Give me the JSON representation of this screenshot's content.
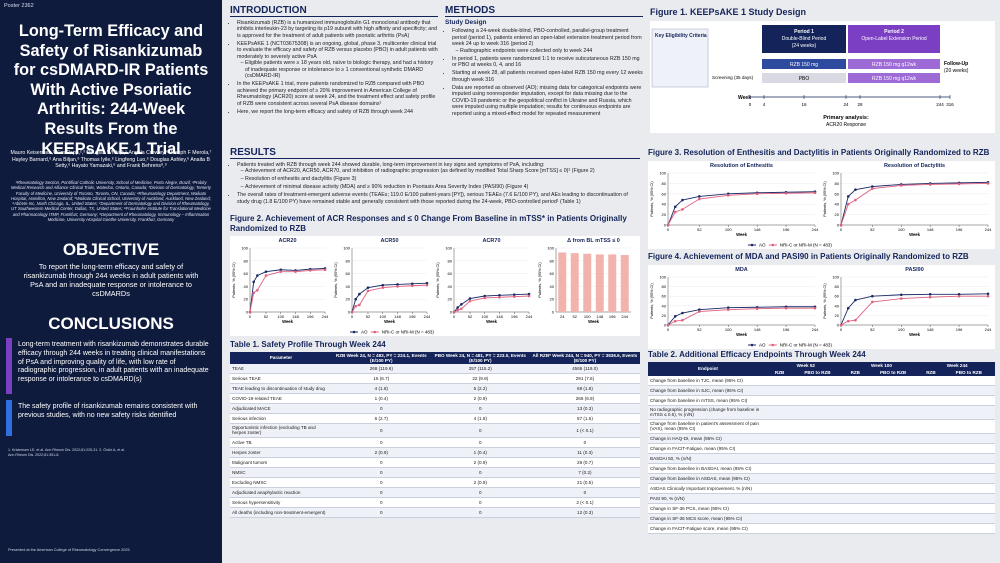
{
  "poster_number": "Poster 2362",
  "title": "Long-Term Efficacy and Safety of Risankizumab for csDMARD-IR Patients With Active Psoriatic Arthritis: 244-Week Results From the KEEPsAKE 1 Trial",
  "authors": "Mauro Keiserman,¹ Kim Papp,²,³ Douglas White,⁴,⁵ Angela Crowley,⁶ Joseph F Merola,⁷ Hayley Barnard,⁶ Ana Biljan,⁶ Thomas Iyile,⁶ Lingfeng Luo,⁶ Douglas Ashley,⁶ Anaita B Setty,⁶ Hayato Yamazaki,⁶ and Frank Behrens⁸,⁹",
  "affiliations": "¹Rheumatology Section, Pontifical Catholic University, School of Medicine, Porto Alegre, Brazil; ²Probity Medical Research and Alliance Clinical Trials, Waterloo, Ontario, Canada; ³Division of Dermatology, Temerty Faculty of Medicine, University of Toronto, Toronto, ON, Canada; ⁴Rheumatology Department, Waikato Hospital, Hamilton, New Zealand; ⁵Waikato Clinical School, University of Auckland, Auckland, New Zealand; ⁶AbbVie Inc, North Chicago, IL, United States; ⁷Department of Dermatology and Division of Rheumatology, UT Southwestern Medical Center, Dallas, TX, United States; ⁸Fraunhofer Institute for Translational Medicine and Pharmacology ITMP, Frankfurt, Germany; ⁹Department of Rheumatology, Immunology – Inflammation Medicine, University Hospital Goethe University, Frankfurt, Germany",
  "objective": {
    "heading": "OBJECTIVE",
    "text": "To report the long-term efficacy and safety of risankizumab through 244 weeks in adult patients with PsA and an inadequate response or intolerance to csDMARDs"
  },
  "conclusions": {
    "heading": "CONCLUSIONS",
    "items": [
      "Long-term treatment with risankizumab demonstrates durable efficacy through 244 weeks in treating clinical manifestations of PsA and improving quality of life, with low rate of radiographic progression, in adult patients with an inadequate response or intolerance to csDMARD(s)",
      "The safety profile of risankizumab remains consistent with previous studies, with no new safety risks identified"
    ]
  },
  "references": "1. Kristensen LE, et al. Ann Rheum Dis. 2022;81:225-31. 2. Östör A, et al. Ann Rheum Dis. 2022;81:351-8.",
  "footer": "Presented at the American College of Rheumatology Convergence 2025",
  "introduction": {
    "heading": "INTRODUCTION",
    "bullets": [
      "Risankizumab (RZB) is a humanized immunoglobulin G1 monoclonal antibody that inhibits interleukin-23 by targeting its p19 subunit with high affinity and specificity; and is approved for the treatment of adult patients with psoriatic arthritis (PsA)",
      {
        "text": "KEEPsAKE 1 (NCT03675308) is an ongoing, global, phase 3, multicenter clinical trial to evaluate the efficacy and safety of RZB versus placebo (PBO) in adult patients with moderately to severely active PsA",
        "sub": [
          "Eligible patients were ≥ 18 years old, naïve to biologic therapy, and had a history of inadequate response or intolerance to ≥ 1 conventional synthetic DMARD (csDMARD-IR)"
        ]
      },
      "In the KEEPsAKE 1 trial, more patients randomized to RZB compared with PBO achieved the primary endpoint of ≥ 20% improvement in American College of Rheumatology (ACR20) score at week 24, and the treatment effect and safety profile of RZB were consistent across several PsA disease domains¹",
      "Here, we report the long-term efficacy and safety of RZB through week 244"
    ]
  },
  "methods": {
    "heading": "METHODS",
    "subheading": "Study Design",
    "bullets": [
      {
        "text": "Following a 24-week double-blind, PBO-controlled, parallel-group treatment period (period 1), patients entered an open-label extension treatment period from week 24 up to week 316 (period 2)",
        "sub": [
          "Radiographic endpoints were collected only to week 244"
        ]
      },
      "In period 1, patients were randomized 1:1 to receive subcutaneous RZB 150 mg or PBO at weeks 0, 4, and 16",
      "Starting at week 28, all patients received open-label RZB 150 mg every 12 weeks through week 316",
      "Data are reported as observed (AO); missing data for categorical endpoints were imputed using nonresponder imputation, except for data missing due to the COVID-19 pandemic or the geopolitical conflict in Ukraine and Russia, which were imputed using multiple imputation; results for continuous endpoints are reported using a mixed-effect model for repeated measurement"
    ]
  },
  "figure1": {
    "title": "Figure 1. KEEPsAKE 1 Study Design",
    "criteria": "Key Eligibility Criteria",
    "screening": "Screening (35 days)",
    "period1": [
      "Period 1",
      "Double-Blind Period",
      "(24 weeks)"
    ],
    "period2": [
      "Period 2",
      "Open-Label Extension Period"
    ],
    "arm_rzb": "RZB 150 mg",
    "arm_pbo": "PBO",
    "arm_ole": "RZB 150 mg q12wk",
    "followup": [
      "Follow-Up",
      "(20 weeks)"
    ],
    "week_label": "Week",
    "weeks": [
      0,
      4,
      16,
      24,
      28,
      244,
      316
    ],
    "primary": [
      "Primary analysis:",
      "ACR20 Response"
    ]
  },
  "results": {
    "heading": "RESULTS",
    "bullets": [
      {
        "text": "Patients treated with RZB through week 244 showed durable, long-term improvement in key signs and symptoms of PsA, including:",
        "sub": [
          "Achievement of ACR20, ACR50, ACR70, and inhibition of radiographic progression (as defined by modified Total Sharp Score [mTSS] ≤ 0)² (Figure 2)",
          "Resolution of enthesitis and dactylitis (Figure 3)",
          "Achievement of minimal disease activity (MDA) and ≥ 90% reduction in Psoriasis Area Severity Index (PASI90) (Figure 4)"
        ]
      },
      "The overall rates of treatment-emergent adverse events (TEAEs; 119.0 E/100 patient-years [PY]), serious TEAEs (7.6 E/100 PY), and AEs leading to discontinuation of study drug (1.8 E/100 PY) have remained stable and generally consistent with those reported during the 24-week, PBO-controlled period¹ (Table 1)"
    ]
  },
  "figure2": {
    "title": "Figure 2. Achievement of ACR Responses and ≤ 0 Change From Baseline in mTSS* in Patients Originally Randomized to RZB",
    "ylabel": "Patients, % (95% CI)",
    "xlabel": "Week",
    "legend": [
      {
        "name": "AO",
        "color": "#1b2a66"
      },
      {
        "name": "NRI-C or NRI-M (N = 483)",
        "color": "#e0607e"
      }
    ],
    "charts": [
      {
        "type": "line",
        "title": "ACR20",
        "x": [
          0,
          12,
          24,
          52,
          100,
          148,
          196,
          244
        ],
        "xlim": [
          0,
          244
        ],
        "xticks": [
          0,
          52,
          100,
          148,
          196,
          244
        ],
        "ylim": [
          0,
          100
        ],
        "yticks": [
          0,
          20,
          40,
          60,
          80,
          100
        ],
        "series": [
          {
            "values": [
              0,
              47,
              57,
              63,
              66,
              65,
              67,
              68
            ]
          },
          {
            "values": [
              0,
              30,
              34,
              57,
              63,
              63,
              65,
              66
            ]
          }
        ]
      },
      {
        "type": "line",
        "title": "ACR50",
        "x": [
          0,
          12,
          24,
          52,
          100,
          148,
          196,
          244
        ],
        "xlim": [
          0,
          244
        ],
        "xticks": [
          0,
          52,
          100,
          148,
          196,
          244
        ],
        "ylim": [
          0,
          100
        ],
        "yticks": [
          0,
          20,
          40,
          60,
          80,
          100
        ],
        "series": [
          {
            "values": [
              0,
              20,
              28,
              38,
              42,
              43,
              44,
              45
            ]
          },
          {
            "values": [
              0,
              9,
              11,
              33,
              38,
              40,
              41,
              42
            ]
          }
        ]
      },
      {
        "type": "line",
        "title": "ACR70",
        "x": [
          0,
          12,
          24,
          52,
          100,
          148,
          196,
          244
        ],
        "xlim": [
          0,
          244
        ],
        "xticks": [
          0,
          52,
          100,
          148,
          196,
          244
        ],
        "ylim": [
          0,
          100
        ],
        "yticks": [
          0,
          20,
          40,
          60,
          80,
          100
        ],
        "series": [
          {
            "values": [
              0,
              7,
              12,
              21,
              25,
              26,
              27,
              28
            ]
          },
          {
            "values": [
              0,
              3,
              5,
              17,
              22,
              23,
              24,
              25
            ]
          }
        ]
      },
      {
        "type": "bar",
        "title": "Δ from BL mTSS ≤ 0",
        "categories": [
          "24",
          "52",
          "100",
          "148",
          "196",
          "244"
        ],
        "values": [
          93,
          92,
          91,
          90,
          90,
          89
        ],
        "color": "#f2b3ad",
        "ylim": [
          0,
          100
        ],
        "yticks": [
          0,
          20,
          40,
          60,
          80,
          100
        ]
      }
    ]
  },
  "figure3": {
    "title": "Figure 3. Resolution of Enthesitis and Dactylitis in Patients Originally Randomized to RZB",
    "ylabel": "Patients, % (95% CI)",
    "xlabel": "Week",
    "legend": [
      {
        "name": "AO",
        "color": "#1b2a66"
      },
      {
        "name": "NRI-C or NRI-M (N = 483)",
        "color": "#e0607e"
      }
    ],
    "charts": [
      {
        "type": "line",
        "title": "Resolution of Enthesitis",
        "x": [
          0,
          12,
          24,
          52,
          100,
          148,
          196,
          244
        ],
        "xlim": [
          0,
          244
        ],
        "xticks": [
          0,
          52,
          100,
          148,
          196,
          244
        ],
        "ylim": [
          0,
          100
        ],
        "yticks": [
          0,
          20,
          40,
          60,
          80,
          100
        ],
        "series": [
          {
            "values": [
              0,
              35,
              48,
              55,
              60,
              62,
              63,
              64
            ]
          },
          {
            "values": [
              0,
              25,
              30,
              50,
              57,
              60,
              61,
              62
            ]
          }
        ]
      },
      {
        "type": "line",
        "title": "Resolution of Dactylitis",
        "x": [
          0,
          12,
          24,
          52,
          100,
          148,
          196,
          244
        ],
        "xlim": [
          0,
          244
        ],
        "xticks": [
          0,
          52,
          100,
          148,
          196,
          244
        ],
        "ylim": [
          0,
          100
        ],
        "yticks": [
          0,
          20,
          40,
          60,
          80,
          100
        ],
        "series": [
          {
            "values": [
              0,
              55,
              68,
              74,
              78,
              80,
              81,
              82
            ]
          },
          {
            "values": [
              0,
              40,
              48,
              70,
              76,
              78,
              79,
              80
            ]
          }
        ]
      }
    ]
  },
  "figure4": {
    "title": "Figure 4. Achievement of MDA and PASI90 in Patients Originally Randomized to RZB",
    "ylabel": "Patients, % (95% CI)",
    "xlabel": "Week",
    "legend": [
      {
        "name": "AO",
        "color": "#1b2a66"
      },
      {
        "name": "NRI-C or NRI-M (N = 483)",
        "color": "#e0607e"
      }
    ],
    "charts": [
      {
        "type": "line",
        "title": "MDA",
        "x": [
          0,
          12,
          24,
          52,
          100,
          148,
          196,
          244
        ],
        "xlim": [
          0,
          244
        ],
        "xticks": [
          0,
          52,
          100,
          148,
          196,
          244
        ],
        "ylim": [
          0,
          100
        ],
        "yticks": [
          0,
          20,
          40,
          60,
          80,
          100
        ],
        "series": [
          {
            "values": [
              0,
              18,
              25,
              32,
              36,
              37,
              38,
              38
            ]
          },
          {
            "values": [
              0,
              8,
              10,
              28,
              32,
              34,
              35,
              35
            ]
          }
        ]
      },
      {
        "type": "line",
        "title": "PASI90",
        "x": [
          0,
          12,
          24,
          52,
          100,
          148,
          196,
          244
        ],
        "xlim": [
          0,
          244
        ],
        "xticks": [
          0,
          52,
          100,
          148,
          196,
          244
        ],
        "ylim": [
          0,
          100
        ],
        "yticks": [
          0,
          20,
          40,
          60,
          80,
          100
        ],
        "series": [
          {
            "values": [
              0,
              35,
              52,
              60,
              63,
              64,
              64,
              65
            ]
          },
          {
            "values": [
              0,
              8,
              10,
              48,
              55,
              58,
              60,
              60
            ]
          }
        ]
      }
    ]
  },
  "table1": {
    "title": "Table 1. Safety Profile Through Week 244",
    "columns": [
      "Parameter",
      "RZB Week 24, N = 483, PY = 224.1, Events (E/100 PY)",
      "PBO Week 24, N = 481, PY = 223.0, Events (E/100 PY)",
      "All RZB* Week 244, N = 940, PY = 3836.6, Events (E/100 PY)"
    ],
    "rows": [
      [
        "TEAE",
        "268 (119.6)",
        "257 (115.2)",
        "4565 (119.0)"
      ],
      [
        "Serious TEAE",
        "15 (6.7)",
        "22 (9.9)",
        "291 (7.6)"
      ],
      [
        "TEAE leading to discontinuation of study drug",
        "4 (1.8)",
        "5 (2.2)",
        "69 (1.8)"
      ],
      [
        "COVID-19-related TEAE",
        "1 (0.4)",
        "2 (0.9)",
        "266 (6.9)"
      ],
      [
        "Adjudicated MACE",
        "0",
        "0",
        "13 (0.3)"
      ],
      [
        "Serious infection",
        "6 (2.7)",
        "4 (1.8)",
        "57 (1.5)"
      ],
      [
        "Opportunistic infection (excluding TB and herpes zoster)",
        "0",
        "0",
        "1 (< 0.1)"
      ],
      [
        "Active TB",
        "0",
        "0",
        "0"
      ],
      [
        "Herpes zoster",
        "2 (0.9)",
        "1 (0.4)",
        "11 (0.3)"
      ],
      [
        "Malignant tumors",
        "0",
        "2 (0.9)",
        "28 (0.7)"
      ],
      [
        "NMSC",
        "0",
        "0",
        "7 (0.2)"
      ],
      [
        "Excluding NMSC",
        "0",
        "2 (0.9)",
        "21 (0.5)"
      ],
      [
        "Adjudicated anaphylactic reaction",
        "0",
        "0",
        "0"
      ],
      [
        "Serious hypersensitivity",
        "0",
        "0",
        "2 (< 0.1)"
      ],
      [
        "All deaths (including non-treatment-emergent)",
        "0",
        "0",
        "12 (0.3)"
      ]
    ]
  },
  "table2": {
    "title": "Table 2. Additional Efficacy Endpoints Through Week 244",
    "endpoint": "Endpoint",
    "weeks": [
      "Week 52",
      "Week 100",
      "Week 244"
    ],
    "arms": [
      "RZB",
      "PBO to RZB"
    ],
    "rows": [
      "Change from baseline in TJC, mean (95% CI)",
      "Change from baseline in SJC, mean (95% CI)",
      "Change from baseline in mTSS, mean (95% CI)",
      "No radiographic progression (change from baseline in mTSS ≤ 0.5), % (n/N)",
      "Change from baseline in patient's assessment of pain (VAS), mean (95% CI)",
      "Change in HAQ-DI, mean (95% CI)",
      "Change in FACIT-Fatigue, mean (95% CI)",
      "BASDAI 50, % (n/N)",
      "Change from baseline in BASDAI, mean (95% CI)",
      "Change from baseline in ASDAS, mean (95% CI)",
      "ASDAS Clinically Important Improvement, % (n/N)",
      "PASI 90, % (n/N)",
      "Change in SF-36 PCS, mean (95% CI)",
      "Change in SF-36 MCS score, mean (95% CI)",
      "Change in FACIT-Fatigue score, mean (95% CI)"
    ]
  }
}
